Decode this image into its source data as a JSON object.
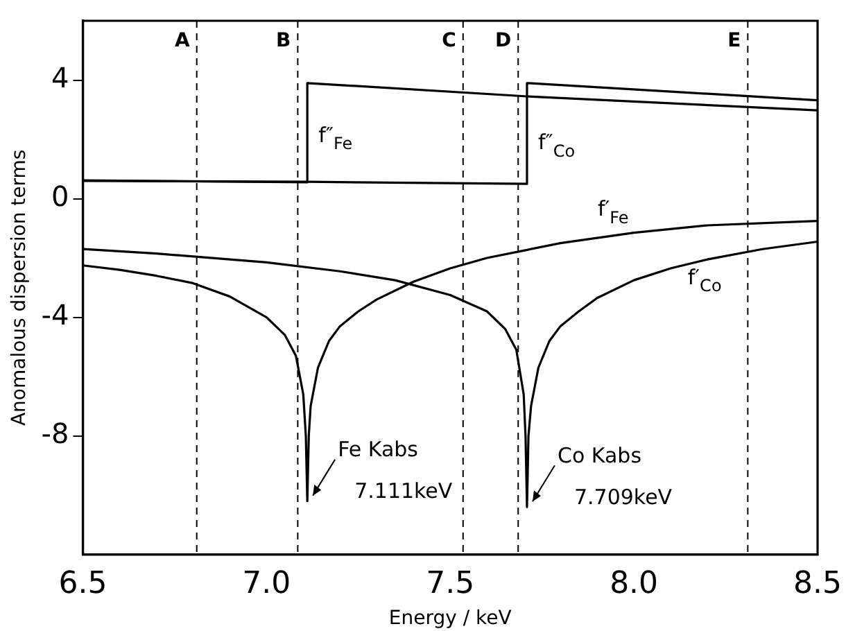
{
  "chart_data": {
    "type": "line",
    "xlabel": "Energy / keV",
    "ylabel": "Anomalous dispersion terms",
    "xlim": [
      6.5,
      8.5
    ],
    "xticks": [
      6.5,
      {
        "value": 7,
        "label": "7.0"
      },
      7.5,
      {
        "value": 8,
        "label": "8.0"
      },
      8.5
    ],
    "ylim": [
      -12,
      6
    ],
    "yticks": [
      -8,
      -4,
      0,
      4
    ],
    "grid": false,
    "legend": false,
    "marker": "none",
    "line_style": "solid",
    "series": [
      {
        "color": "#000000",
        "x": [
          6.5,
          7.111,
          7.111,
          7.709,
          8.5
        ],
        "values": [
          0.62,
          0.55,
          3.9,
          3.45,
          2.98
        ]
      },
      {
        "color": "#000000",
        "x": [
          6.5,
          7.111,
          7.709,
          7.709,
          8.5
        ],
        "values": [
          0.6,
          0.57,
          0.5,
          3.9,
          3.32
        ]
      },
      {
        "color": "#000000",
        "x": [
          6.5,
          6.6,
          6.7,
          6.8,
          6.9,
          7.0,
          7.05,
          7.08,
          7.1,
          7.107,
          7.111,
          7.115,
          7.12,
          7.14,
          7.17,
          7.2,
          7.25,
          7.3,
          7.4,
          7.5,
          7.6,
          7.7,
          7.8,
          8.0,
          8.2,
          8.5
        ],
        "values": [
          -2.25,
          -2.4,
          -2.6,
          -2.85,
          -3.3,
          -4.0,
          -4.6,
          -5.3,
          -6.6,
          -8.0,
          -10.2,
          -8.0,
          -7.0,
          -5.7,
          -4.8,
          -4.3,
          -3.8,
          -3.4,
          -2.8,
          -2.35,
          -2.0,
          -1.75,
          -1.5,
          -1.15,
          -0.9,
          -0.75
        ]
      },
      {
        "color": "#000000",
        "x": [
          6.5,
          6.7,
          7.0,
          7.2,
          7.35,
          7.5,
          7.6,
          7.65,
          7.68,
          7.7,
          7.705,
          7.709,
          7.713,
          7.72,
          7.74,
          7.77,
          7.8,
          7.85,
          7.9,
          8.0,
          8.1,
          8.2,
          8.35,
          8.5
        ],
        "values": [
          -1.7,
          -1.85,
          -2.15,
          -2.45,
          -2.75,
          -3.25,
          -3.8,
          -4.4,
          -5.1,
          -6.6,
          -8.0,
          -10.4,
          -8.0,
          -7.0,
          -5.7,
          -4.8,
          -4.3,
          -3.8,
          -3.35,
          -2.75,
          -2.35,
          -2.05,
          -1.7,
          -1.45
        ]
      }
    ],
    "ref_lines": [
      {
        "axis": "x",
        "value": 6.81,
        "label": "A",
        "color": "#000000",
        "line_style": "dashed"
      },
      {
        "axis": "x",
        "value": 7.085,
        "label": "B",
        "color": "#000000",
        "line_style": "dashed"
      },
      {
        "axis": "x",
        "value": 7.535,
        "label": "C",
        "color": "#000000",
        "line_style": "dashed"
      },
      {
        "axis": "x",
        "value": 7.685,
        "label": "D",
        "color": "#000000",
        "line_style": "dashed"
      },
      {
        "axis": "x",
        "value": 8.31,
        "label": "E",
        "color": "#000000",
        "line_style": "dashed"
      }
    ],
    "annotations": [
      {
        "text": "f″$_{Fe}$",
        "x": 7.111,
        "y": 2.1
      },
      {
        "text": "f″$_{Co}$",
        "x": 7.709,
        "y": 1.85
      },
      {
        "text": "f′$_{Fe}$",
        "x": 7.95,
        "y": -1.24
      },
      {
        "text": "f′$_{Co}$",
        "x": 8.2,
        "y": -2.05
      },
      {
        "text": "Fe Kabs",
        "x": 7.111,
        "y": -10.2
      },
      {
        "text": "7.111keV",
        "x": 7.111,
        "y": -10.2
      },
      {
        "text": "Co Kabs",
        "x": 7.709,
        "y": -10.4
      },
      {
        "text": "7.709keV",
        "x": 7.709,
        "y": -10.4
      }
    ]
  }
}
